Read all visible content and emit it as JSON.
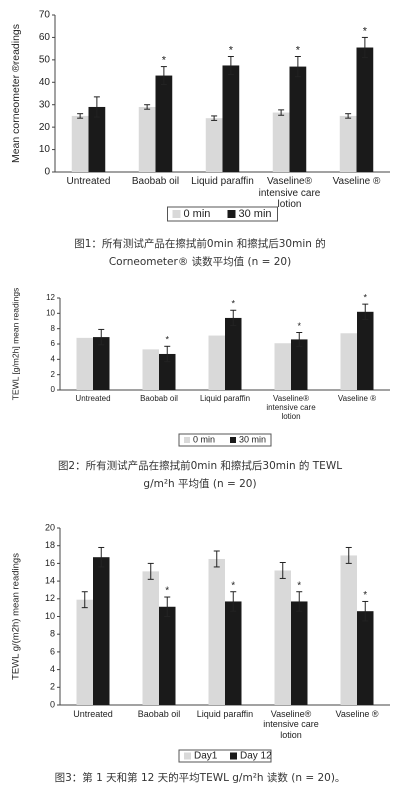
{
  "chart_data": [
    {
      "type": "bar",
      "y_label": "Mean corneometer ®readings",
      "categories": [
        "Untreated",
        "Baobab oil",
        "Liquid paraffin",
        "Vaseline® intensive care lotion",
        "Vaseline ®"
      ],
      "series": [
        {
          "name": "0 min",
          "color": "#d9d9d9",
          "values": [
            25,
            29,
            24,
            26.5,
            25
          ],
          "errors": [
            1,
            1,
            1,
            1.2,
            1
          ]
        },
        {
          "name": "30 min",
          "color": "#1a1a1a",
          "values": [
            29,
            43,
            47.5,
            47,
            55.5
          ],
          "errors": [
            4.5,
            4,
            4,
            4.5,
            4.5
          ],
          "markers": [
            null,
            "*",
            "*",
            "*",
            "*"
          ]
        }
      ],
      "ylim": [
        0,
        70
      ],
      "yticks": [
        0,
        10,
        20,
        30,
        40,
        50,
        60,
        70
      ],
      "caption": "图1：所有测试产品在擦拭前0min 和擦拭后30min 的 Corneometer® 读数平均值 (n = 20)"
    },
    {
      "type": "bar",
      "y_label": "TEWL [g/m2h] mean readings",
      "categories": [
        "Untreated",
        "Baobab oil",
        "Liquid paraffin",
        "Vaseline® intensive care lotion",
        "Vaseline ®"
      ],
      "series": [
        {
          "name": "0 min",
          "color": "#d9d9d9",
          "values": [
            6.8,
            5.3,
            7.1,
            6.1,
            7.4
          ]
        },
        {
          "name": "30 min",
          "color": "#1a1a1a",
          "values": [
            6.9,
            4.7,
            9.4,
            6.6,
            10.2
          ],
          "errors": [
            1,
            1,
            1,
            0.9,
            1
          ],
          "markers": [
            null,
            "*",
            "*",
            "*",
            "*"
          ]
        }
      ],
      "ylim": [
        0,
        12
      ],
      "yticks": [
        0,
        2,
        4,
        6,
        8,
        10,
        12
      ],
      "caption": "图2：所有测试产品在擦拭前0min 和擦拭后30min 的 TEWL g/m²h 平均值 (n = 20)"
    },
    {
      "type": "bar",
      "y_label": "TEWL g/(m2h) mean readings",
      "categories": [
        "Untreated",
        "Baobab oil",
        "Liquid paraffin",
        "Vaseline® intensive care lotion",
        "Vaseline ®"
      ],
      "series": [
        {
          "name": "Day1",
          "color": "#d9d9d9",
          "values": [
            11.9,
            15.1,
            16.5,
            15.2,
            16.9
          ],
          "errors": [
            0.9,
            0.9,
            0.9,
            0.9,
            0.9
          ]
        },
        {
          "name": "Day 12",
          "color": "#1a1a1a",
          "values": [
            16.7,
            11.1,
            11.7,
            11.7,
            10.6
          ],
          "errors": [
            1.1,
            1.1,
            1.1,
            1.1,
            1.1
          ],
          "markers": [
            null,
            "*",
            "*",
            "*",
            "*"
          ]
        }
      ],
      "ylim": [
        0,
        20
      ],
      "yticks": [
        0,
        2,
        4,
        6,
        8,
        10,
        12,
        14,
        16,
        18,
        20
      ],
      "caption": "图3：第 1 天和第 12 天的平均TEWL g/m²h 读数 (n = 20)。"
    }
  ]
}
